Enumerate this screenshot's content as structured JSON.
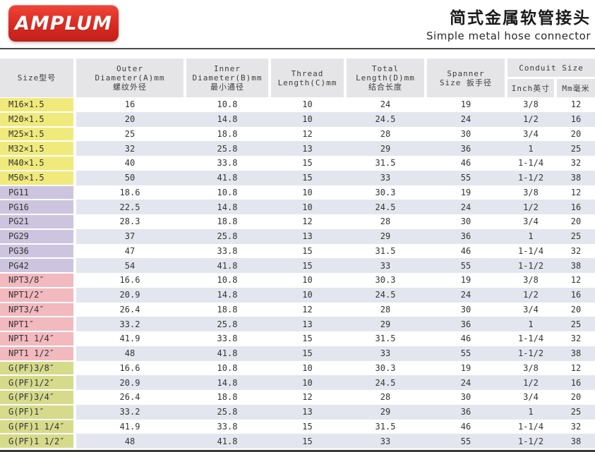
{
  "brand": {
    "logo_text": "AMPLUM"
  },
  "header": {
    "title_zh": "简式金属软管接头",
    "title_en": "Simple metal hose connector"
  },
  "table": {
    "head": {
      "size": "Size型号",
      "outer": [
        "Outer",
        "Diameter(A)mm",
        "螺纹外径"
      ],
      "inner": [
        "Inner",
        "Diameter(B)mm",
        "最小通径"
      ],
      "thread": [
        "Thread",
        "Length(C)mm"
      ],
      "total": [
        "Total",
        "Length(D)mm",
        "结合长度"
      ],
      "spanner": [
        "Spanner",
        "Size 扳手径"
      ],
      "conduit": "Conduit Size",
      "conduit_inch": "Inch英寸",
      "conduit_mm": "Mm毫米"
    },
    "colors": {
      "header_bg": "#e5e5e7",
      "stripe_bg": "#e3e6ee",
      "metric_group": "#f0ea7c",
      "pg_group": "#cdc5df",
      "npt_group": "#f2b9bf",
      "gpf_group": "#d6db8c",
      "logo_red": "#d92a22"
    },
    "groups": [
      {
        "name": "metric-thread",
        "color": "#f0ea7c",
        "rows": [
          {
            "size": "M16×1.5",
            "values": [
              "16",
              "10.8",
              "10",
              "24",
              "19",
              "3/8",
              "12"
            ]
          },
          {
            "size": "M20×1.5",
            "values": [
              "20",
              "14.8",
              "10",
              "24.5",
              "24",
              "1/2",
              "16"
            ]
          },
          {
            "size": "M25×1.5",
            "values": [
              "25",
              "18.8",
              "12",
              "28",
              "30",
              "3/4",
              "20"
            ]
          },
          {
            "size": "M32×1.5",
            "values": [
              "32",
              "25.8",
              "13",
              "29",
              "36",
              "1",
              "25"
            ]
          },
          {
            "size": "M40×1.5",
            "values": [
              "40",
              "33.8",
              "15",
              "31.5",
              "46",
              "1-1/4",
              "32"
            ]
          },
          {
            "size": "M50×1.5",
            "values": [
              "50",
              "41.8",
              "15",
              "33",
              "55",
              "1-1/2",
              "38"
            ]
          }
        ]
      },
      {
        "name": "pg-thread",
        "color": "#cdc5df",
        "rows": [
          {
            "size": "PG11",
            "values": [
              "18.6",
              "10.8",
              "10",
              "30.3",
              "19",
              "3/8",
              "12"
            ]
          },
          {
            "size": "PG16",
            "values": [
              "22.5",
              "14.8",
              "10",
              "24.5",
              "24",
              "1/2",
              "16"
            ]
          },
          {
            "size": "PG21",
            "values": [
              "28.3",
              "18.8",
              "12",
              "28",
              "30",
              "3/4",
              "20"
            ]
          },
          {
            "size": "PG29",
            "values": [
              "37",
              "25.8",
              "13",
              "29",
              "36",
              "1",
              "25"
            ]
          },
          {
            "size": "PG36",
            "values": [
              "47",
              "33.8",
              "15",
              "31.5",
              "46",
              "1-1/4",
              "32"
            ]
          },
          {
            "size": "PG42",
            "values": [
              "54",
              "41.8",
              "15",
              "33",
              "55",
              "1-1/2",
              "38"
            ]
          }
        ]
      },
      {
        "name": "npt-thread",
        "color": "#f2b9bf",
        "rows": [
          {
            "size": "NPT3/8″",
            "values": [
              "16.6",
              "10.8",
              "10",
              "30.3",
              "19",
              "3/8",
              "12"
            ]
          },
          {
            "size": "NPT1/2″",
            "values": [
              "20.9",
              "14.8",
              "10",
              "24.5",
              "24",
              "1/2",
              "16"
            ]
          },
          {
            "size": "NPT3/4″",
            "values": [
              "26.4",
              "18.8",
              "12",
              "28",
              "30",
              "3/4",
              "20"
            ]
          },
          {
            "size": "NPT1″",
            "values": [
              "33.2",
              "25.8",
              "13",
              "29",
              "36",
              "1",
              "25"
            ]
          },
          {
            "size": "NPT1 1/4″",
            "values": [
              "41.9",
              "33.8",
              "15",
              "31.5",
              "46",
              "1-1/4",
              "32"
            ]
          },
          {
            "size": "NPT1 1/2″",
            "values": [
              "48",
              "41.8",
              "15",
              "33",
              "55",
              "1-1/2",
              "38"
            ]
          }
        ]
      },
      {
        "name": "gpf-thread",
        "color": "#d6db8c",
        "rows": [
          {
            "size": "G(PF)3/8″",
            "values": [
              "16.6",
              "10.8",
              "10",
              "30.3",
              "19",
              "3/8",
              "12"
            ]
          },
          {
            "size": "G(PF)1/2″",
            "values": [
              "20.9",
              "14.8",
              "10",
              "24.5",
              "24",
              "1/2",
              "16"
            ]
          },
          {
            "size": "G(PF)3/4″",
            "values": [
              "26.4",
              "18.8",
              "12",
              "28",
              "30",
              "3/4",
              "20"
            ]
          },
          {
            "size": "G(PF)1″",
            "values": [
              "33.2",
              "25.8",
              "13",
              "29",
              "36",
              "1",
              "25"
            ]
          },
          {
            "size": "G(PF)1 1/4″",
            "values": [
              "41.9",
              "33.8",
              "15",
              "31.5",
              "46",
              "1-1/4",
              "32"
            ]
          },
          {
            "size": "G(PF)1 1/2″",
            "values": [
              "48",
              "41.8",
              "15",
              "33",
              "55",
              "1-1/2",
              "38"
            ]
          }
        ]
      }
    ]
  }
}
